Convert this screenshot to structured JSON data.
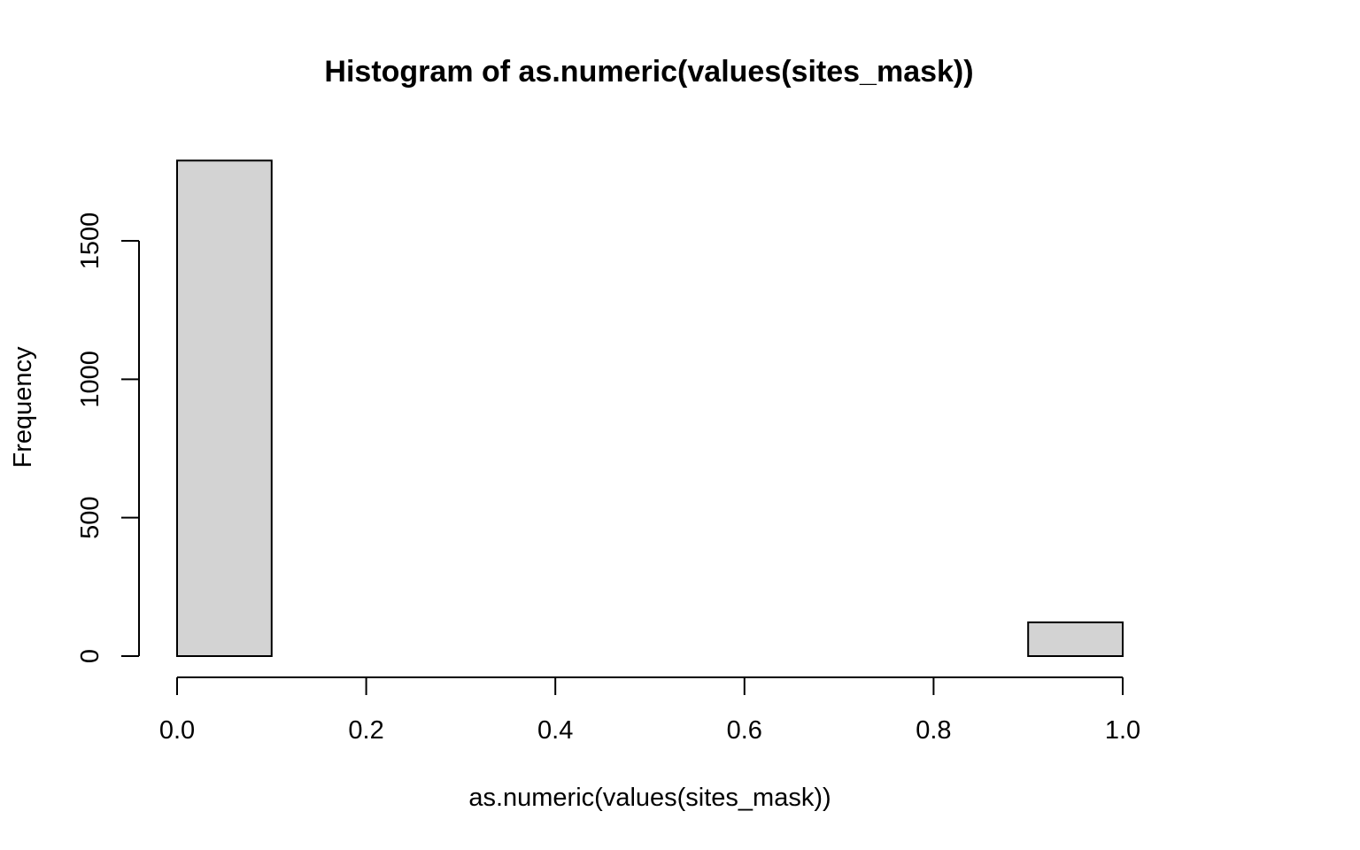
{
  "chart_data": {
    "type": "bar",
    "title": "Histogram of as.numeric(values(sites_mask))",
    "xlabel": "as.numeric(values(sites_mask))",
    "ylabel": "Frequency",
    "bins": [
      {
        "from": 0.0,
        "to": 0.1,
        "count": 1790
      },
      {
        "from": 0.1,
        "to": 0.2,
        "count": 0
      },
      {
        "from": 0.2,
        "to": 0.3,
        "count": 0
      },
      {
        "from": 0.3,
        "to": 0.4,
        "count": 0
      },
      {
        "from": 0.4,
        "to": 0.5,
        "count": 0
      },
      {
        "from": 0.5,
        "to": 0.6,
        "count": 0
      },
      {
        "from": 0.6,
        "to": 0.7,
        "count": 0
      },
      {
        "from": 0.7,
        "to": 0.8,
        "count": 0
      },
      {
        "from": 0.8,
        "to": 0.9,
        "count": 0
      },
      {
        "from": 0.9,
        "to": 1.0,
        "count": 122
      }
    ],
    "xlim": [
      0.0,
      1.0
    ],
    "ylim": [
      0,
      1790
    ],
    "x_ticks": [
      "0.0",
      "0.2",
      "0.4",
      "0.6",
      "0.8",
      "1.0"
    ],
    "y_ticks": [
      "0",
      "500",
      "1000",
      "1500"
    ],
    "bar_fill": "#d3d3d3",
    "bar_stroke": "#000000",
    "grid": false,
    "legend": "none"
  }
}
